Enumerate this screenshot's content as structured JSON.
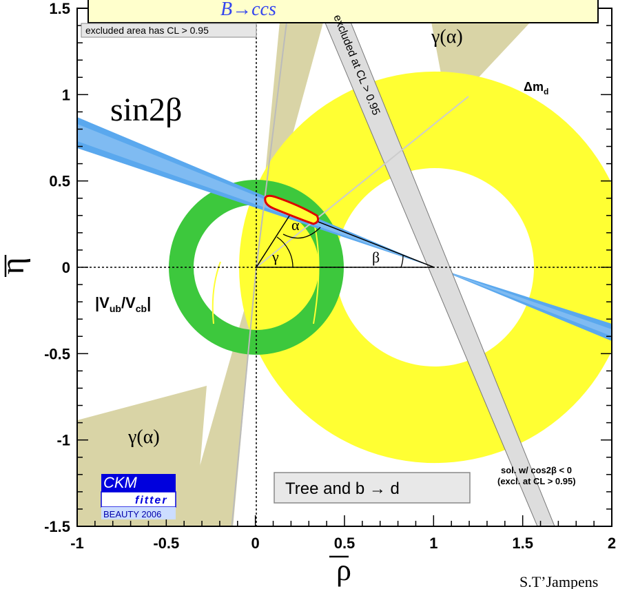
{
  "chart_data": {
    "type": "scatter",
    "xlabel": "ρ",
    "ylabel": "η",
    "xlim": [
      -1,
      2
    ],
    "ylim": [
      -1.5,
      1.5
    ],
    "x_ticks": [
      -1,
      -0.5,
      0,
      0.5,
      1,
      1.5,
      2
    ],
    "x_tick_labels": [
      "-1",
      "-0.5",
      "0",
      "0.5",
      "1",
      "1.5",
      "2"
    ],
    "y_ticks": [
      -1.5,
      -1,
      -0.5,
      0,
      0.5,
      1,
      1.5
    ],
    "y_tick_labels": [
      "-1.5",
      "-1",
      "-0.5",
      "0",
      "0.5",
      "1",
      "1.5"
    ],
    "grid": false,
    "apex": {
      "rho": 0.2,
      "eta": 0.34
    },
    "constraints": [
      {
        "name": "Δm_d",
        "color": "#ffff33",
        "shape": "annulus",
        "center": [
          1,
          0
        ],
        "r_inner": 0.56,
        "r_outer": 1.1
      },
      {
        "name": "|Vub/Vcb|",
        "color": "#3dc83d",
        "shape": "annulus",
        "center": [
          0,
          0
        ],
        "r_inner": 0.36,
        "r_outer": 0.52
      },
      {
        "name": "sin2β",
        "color": "#5aa8ee",
        "shape": "wedge",
        "center": [
          1,
          0
        ],
        "slope_range": [
          -0.44,
          -0.34
        ]
      },
      {
        "name": "γ(α)",
        "color": "#d9d4a6",
        "shape": "cone",
        "center": [
          0,
          0
        ],
        "angle_deg_range": [
          58,
          66
        ]
      },
      {
        "name": "excluded at CL > 0.95",
        "color": "#dddddd",
        "shape": "band",
        "line": [
          [
            0.4,
            1.9
          ],
          [
            1.75,
            -1.8
          ]
        ]
      }
    ],
    "angle_labels": [
      "α",
      "β",
      "γ"
    ]
  },
  "header_text": "B→ccs",
  "excluded_note": "excluded area has CL > 0.95",
  "labels": {
    "sin2beta": "sin2β",
    "gamma_alpha_top": "γ(α)",
    "gamma_alpha_bottom": "γ(α)",
    "dmd_main": "Δm",
    "dmd_sub": "d",
    "vub_main": "|V",
    "vub_sub1": "ub",
    "vub_slash": "/V",
    "vub_sub2": "cb",
    "vub_end": "|",
    "excluded_band": "excluded at CL > 0.95",
    "alpha": "α",
    "beta": "β",
    "gamma": "γ",
    "sol_line1": "sol. w/ cos2β < 0",
    "sol_line2": "(excl. at CL > 0.95)",
    "tree_box": "Tree and b → d"
  },
  "logo": {
    "line1": "CKM",
    "line2": "fitter",
    "line3": "BEAUTY 2006"
  },
  "author": "S.T’Jampens",
  "colors": {
    "dmd_yellow": "#ffff33",
    "vub_green": "#3dc83d",
    "sin2b_blue": "#5aa8ee",
    "gamma_khaki": "#d9d4a6",
    "excluded_grey": "#dddddd",
    "apex_red": "#dd0000",
    "header_bg": "#ffffcc",
    "logo_blue": "#0000dd"
  }
}
